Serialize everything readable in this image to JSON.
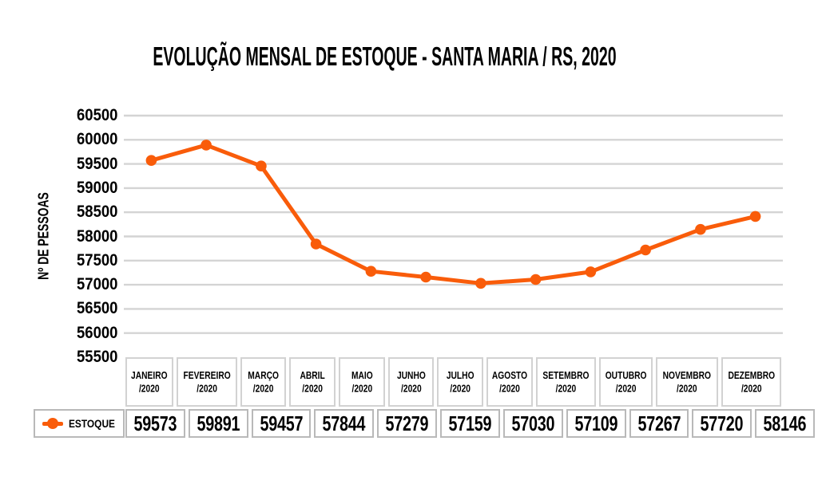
{
  "chart_data": {
    "type": "line",
    "title": "EVOLUÇÃO MENSAL DE ESTOQUE - SANTA MARIA / RS, 2020",
    "ylabel": "Nº DE PESSOAS",
    "xlabel": "",
    "categories": [
      "JANEIRO",
      "FEVEREIRO",
      "MARÇO",
      "ABRIL",
      "MAIO",
      "JUNHO",
      "JULHO",
      "AGOSTO",
      "SETEMBRO",
      "OUTUBRO",
      "NOVEMBRO",
      "DEZEMBRO"
    ],
    "category_suffix": "/2020",
    "series": [
      {
        "name": "ESTOQUE",
        "values": [
          59573,
          59891,
          59457,
          57844,
          57279,
          57159,
          57030,
          57109,
          57267,
          57720,
          58146,
          58415
        ]
      }
    ],
    "ylim": [
      55500,
      60500
    ],
    "ytick_step": 500,
    "yticks": [
      60500,
      60000,
      59500,
      59000,
      58500,
      58000,
      57500,
      57000,
      56500,
      56000,
      55500
    ],
    "grid": "horizontal",
    "legend_position": "bottom-left-table",
    "colors": {
      "line": "#F95C0A",
      "marker": "#F95C0A",
      "grid": "#D4D4D4",
      "text": "#000000"
    }
  }
}
